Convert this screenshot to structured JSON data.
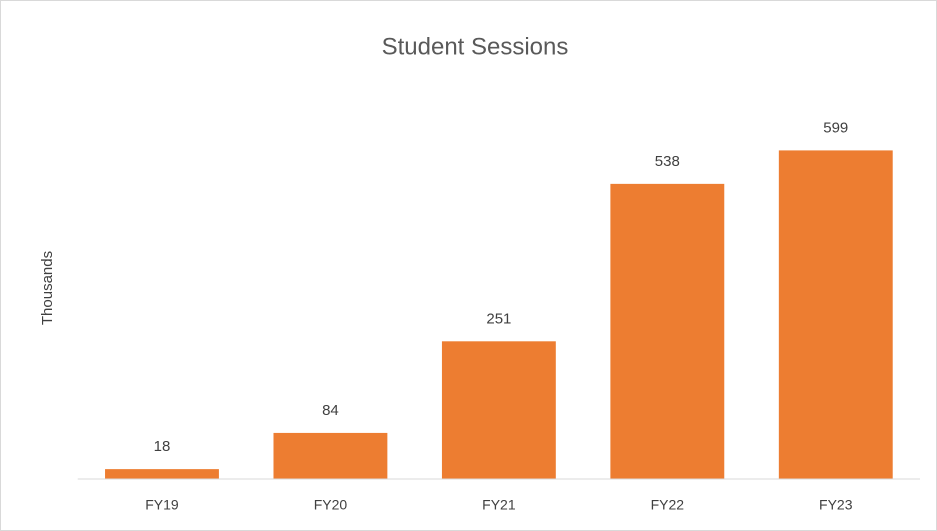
{
  "chart_data": {
    "type": "bar",
    "title": "Student Sessions",
    "y_label": "Thousands",
    "categories": [
      "FY19",
      "FY20",
      "FY21",
      "FY22",
      "FY23"
    ],
    "values": [
      18,
      84,
      251,
      538,
      599
    ],
    "color": "#ed7d31",
    "ylim": [
      0,
      700
    ]
  }
}
